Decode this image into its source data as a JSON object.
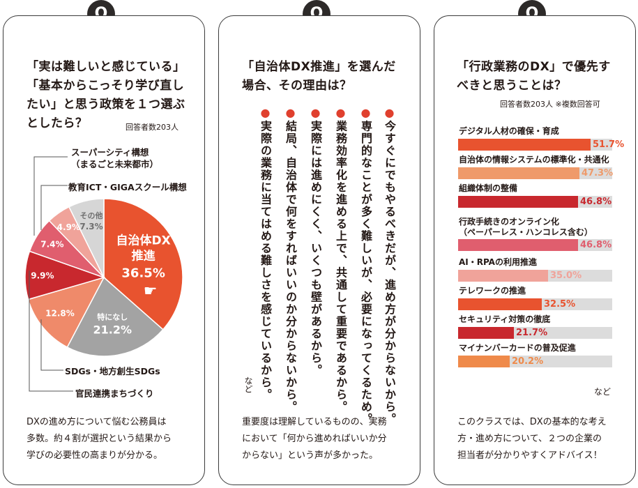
{
  "badges": [
    "Q",
    "Q",
    "Q"
  ],
  "panel1": {
    "title_lines": [
      "「実は難しいと感じている」",
      "「基本からこっそり学び直し",
      "たい」と思う政策を１つ選ぶ",
      "としたら？"
    ],
    "note": "回答者数203人",
    "footer_lines": [
      "DXの進め方について悩む公務員は",
      "多数。約４割が選択という結果から",
      "学びの必要性の高まりが分かる。"
    ]
  },
  "panel2": {
    "title_lines": [
      "「自治体DX推進」を選んだ",
      "場合、その理由は？"
    ],
    "reasons": [
      "今すぐにでもやるべきだが、進め方が分からないから。",
      "専門的なことが多く難しいが、必要になってくるため。",
      "業務効率化を進める上で、共通して重要であるから。",
      "実際には進めにくく、いくつも壁があるから。",
      "結局、自治体で何をすればいいのか分からないから。",
      "実際の業務に当てはめる難しさを感じているから。"
    ],
    "etc": "など",
    "footer_lines": [
      "重要度は理解しているものの、実務",
      "において「何から進めればいいか分",
      "からない」という声が多かった。"
    ]
  },
  "panel3": {
    "title_lines": [
      "「行政業務のDX」で優先す",
      "べきと思うことは？"
    ],
    "note": "回答者数203人 ※複数回答可",
    "etc": "など",
    "footer_lines": [
      "このクラスでは、DXの基本的な考え",
      "方・進め方について、２つの企業の",
      "担当者が分かりやすくアドバイス！"
    ]
  },
  "chart_data": [
    {
      "type": "pie",
      "title": "「実は難しいと感じている」「基本からこっそり学び直したい」と思う政策を１つ選ぶとしたら？",
      "unit": "%",
      "slices": [
        {
          "label": "自治体DX推進",
          "value": 36.5,
          "value_text": "36.5%",
          "color": "#e8532f"
        },
        {
          "label": "特になし",
          "value": 21.2,
          "value_text": "21.2%",
          "color": "#a3a3a3"
        },
        {
          "label": "SDGs・地方創生SDGs",
          "value": 12.8,
          "value_text": "12.8%",
          "color": "#ef8a6a"
        },
        {
          "label": "官民連携まちづくり",
          "value": 9.9,
          "value_text": "9.9%",
          "color": "#c8282e"
        },
        {
          "label": "スーパーシティ構想（まるごと未来都市）",
          "value": 7.4,
          "value_text": "7.4%",
          "color": "#e05e6e"
        },
        {
          "label": "教育ICT・GIGAスクール構想",
          "value": 4.9,
          "value_text": "4.9%",
          "color": "#f0a39a"
        },
        {
          "label": "その他",
          "value": 7.3,
          "value_text": "7.3%",
          "color": "#d6d6d6"
        }
      ],
      "callouts": {
        "superCity": [
          "スーパーシティ構想",
          "（まるごと未来都市）"
        ],
        "ict": "教育ICT・GIGAスクール構想",
        "sdgs": "SDGs・地方創生SDGs",
        "kanmin": "官民連携まちづくり"
      }
    },
    {
      "type": "bar",
      "orientation": "horizontal",
      "title": "「行政業務のDX」で優先すべきと思うことは？",
      "unit": "%",
      "xlim": [
        0,
        60
      ],
      "categories": [
        "デジタル人材の確保・育成",
        "自治体の情報システムの標準化・共通化",
        "組織体制の整備",
        "行政手続きのオンライン化（ペーパーレス・ハンコレス含む）",
        "AI・RPAの利用推進",
        "テレワークの推進",
        "セキュリティ対策の徹底",
        "マイナンバーカードの普及促進"
      ],
      "label_lines": [
        [
          "デジタル人材の確保・育成"
        ],
        [
          "自治体の情報システムの標準化・共通化"
        ],
        [
          "組織体制の整備"
        ],
        [
          "行政手続きのオンライン化",
          "（ペーパーレス・ハンコレス含む）"
        ],
        [
          "AI・RPAの利用推進"
        ],
        [
          "テレワークの推進"
        ],
        [
          "セキュリティ対策の徹底"
        ],
        [
          "マイナンバーカードの普及促進"
        ]
      ],
      "values": [
        51.7,
        47.3,
        46.8,
        46.8,
        35.0,
        32.5,
        21.7,
        20.2
      ],
      "value_texts": [
        "51.7%",
        "47.3%",
        "46.8%",
        "46.8%",
        "35.0%",
        "32.5%",
        "21.7%",
        "20.2%"
      ],
      "colors": [
        "#e8532f",
        "#ef9a6a",
        "#c8282e",
        "#e05e6e",
        "#f0a39a",
        "#e8532f",
        "#c8282e",
        "#ef8a4a"
      ]
    }
  ]
}
